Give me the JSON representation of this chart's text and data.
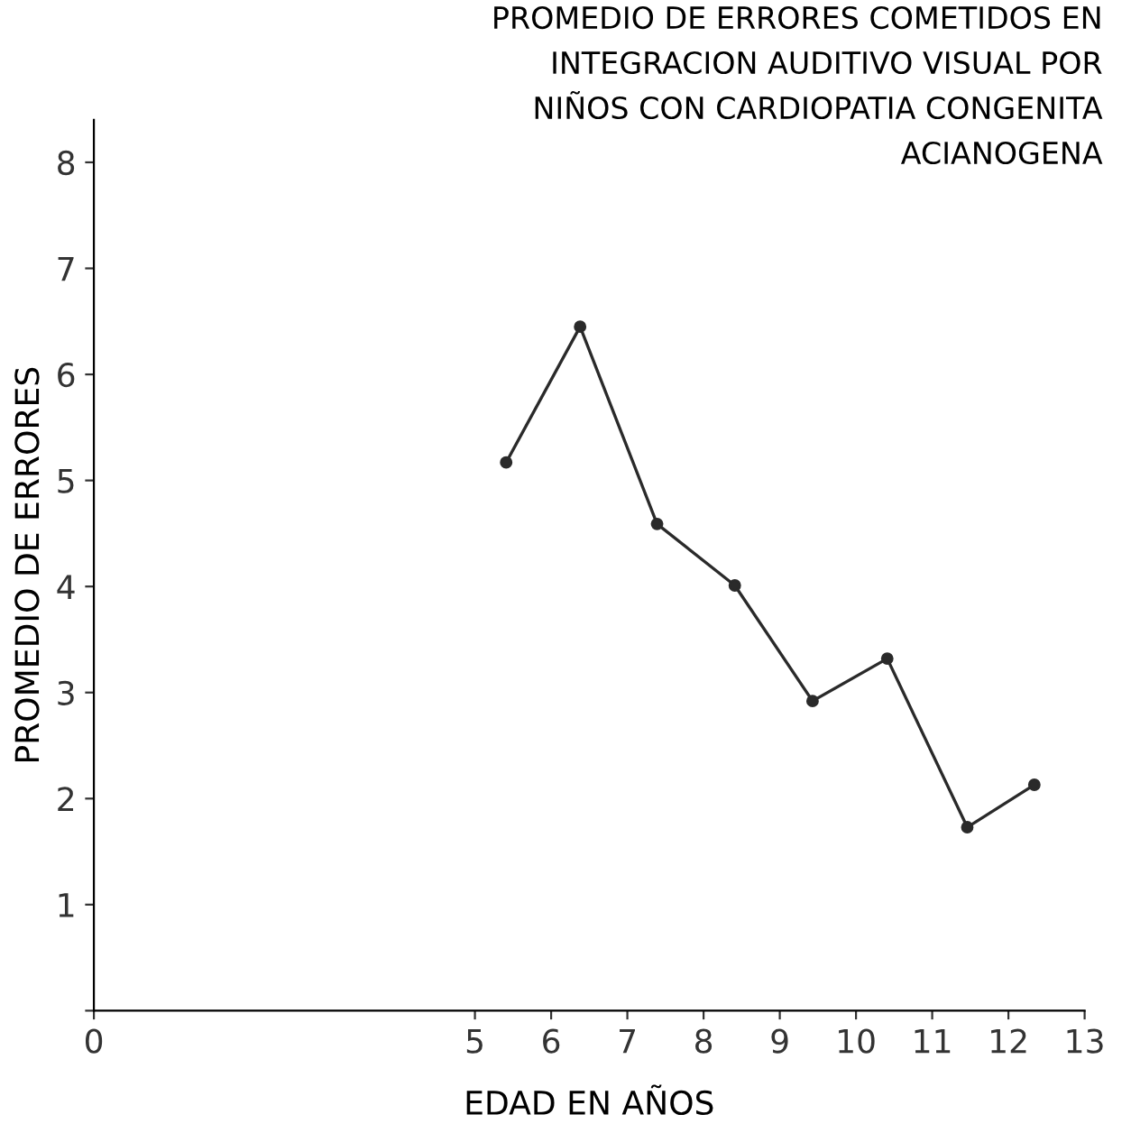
{
  "chart_data": {
    "type": "line",
    "title": "PROMEDIO DE ERRORES COMETIDOS EN\nINTEGRACION AUDITIVO VISUAL POR\nNIÑOS CON CARDIOPATIA CONGENITA\nACIANOGENA",
    "xlabel": "EDAD EN AÑOS",
    "ylabel": "PROMEDIO DE ERRORES",
    "series": [
      {
        "color": "#2a2a2a",
        "x": [
          5.41,
          6.38,
          7.39,
          8.41,
          9.43,
          10.41,
          11.46,
          12.34
        ],
        "values": [
          5.17,
          6.45,
          4.59,
          4.01,
          2.92,
          3.32,
          1.73,
          2.13
        ]
      }
    ],
    "xlim": [
      0,
      13
    ],
    "xticks": [
      0,
      5,
      6,
      7,
      8,
      9,
      10,
      11,
      12,
      13
    ],
    "ylim": [
      0,
      8.4
    ],
    "yticks": [
      {
        "value": 0,
        "label": null
      },
      1,
      2,
      3,
      4,
      5,
      6,
      7,
      8
    ],
    "grid": false,
    "legend": false,
    "marker": "circle",
    "line_style": "solid"
  }
}
